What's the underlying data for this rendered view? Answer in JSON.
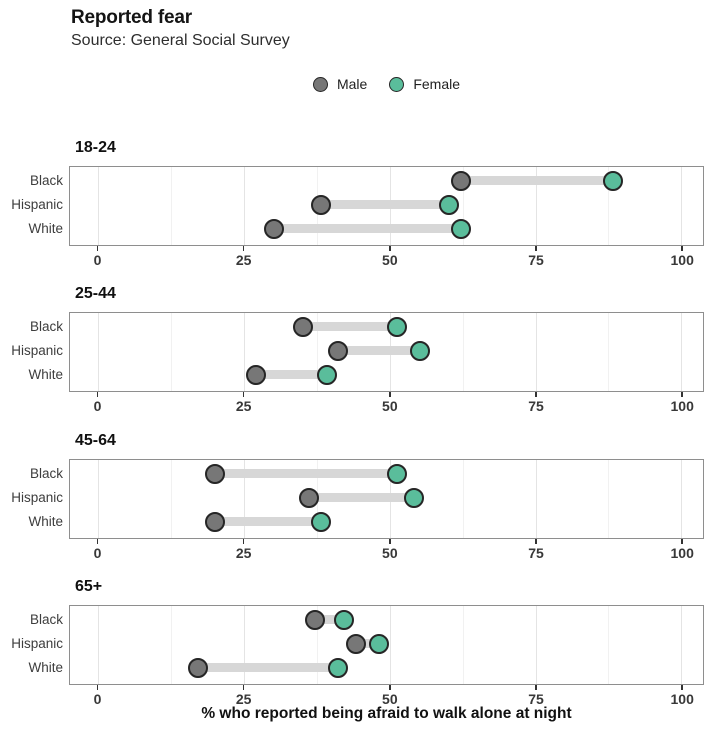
{
  "header": {
    "title": "Reported fear",
    "subtitle": "Source: General Social Survey"
  },
  "legend": {
    "items": [
      {
        "label": "Male",
        "color": "#777777"
      },
      {
        "label": "Female",
        "color": "#5abd9b"
      }
    ]
  },
  "chart_data": {
    "type": "dumbbell",
    "title": "Reported fear",
    "subtitle": "Source: General Social Survey",
    "xlabel": "% who reported being afraid to walk alone at night",
    "xlim": [
      0,
      100
    ],
    "x_ticks": [
      0,
      25,
      50,
      75,
      100
    ],
    "x_minor_gridlines": [
      12.5,
      37.5,
      62.5,
      87.5
    ],
    "grid": "vertical-only",
    "legend_position": "top-center",
    "categories": [
      "Black",
      "Hispanic",
      "White"
    ],
    "panels": [
      {
        "age_group": "18-24",
        "series": [
          {
            "name": "Male",
            "values": [
              62,
              38,
              30
            ]
          },
          {
            "name": "Female",
            "values": [
              88,
              60,
              62
            ]
          }
        ]
      },
      {
        "age_group": "25-44",
        "series": [
          {
            "name": "Male",
            "values": [
              35,
              41,
              27
            ]
          },
          {
            "name": "Female",
            "values": [
              51,
              55,
              39
            ]
          }
        ]
      },
      {
        "age_group": "45-64",
        "series": [
          {
            "name": "Male",
            "values": [
              20,
              36,
              20
            ]
          },
          {
            "name": "Female",
            "values": [
              51,
              54,
              38
            ]
          }
        ]
      },
      {
        "age_group": "65+",
        "series": [
          {
            "name": "Male",
            "values": [
              37,
              44,
              17
            ]
          },
          {
            "name": "Female",
            "values": [
              42,
              48,
              41
            ]
          }
        ]
      }
    ],
    "colors": {
      "male_fill": "#777777",
      "female_fill": "#5abd9b",
      "dot_stroke": "#262626",
      "connector_bar": "#d7d7d7",
      "grid_major": "#e4e4e4",
      "grid_minor": "#f1f1f1",
      "panel_border": "#8e8e8e"
    }
  }
}
